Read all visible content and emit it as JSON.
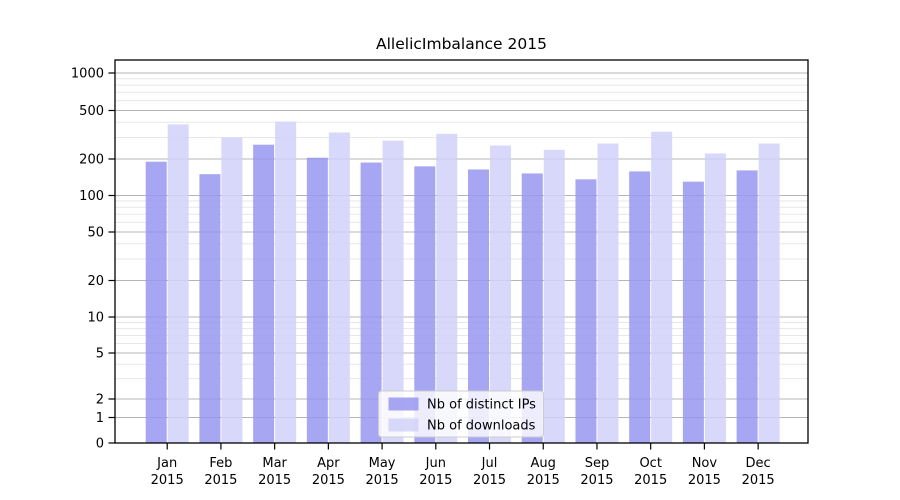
{
  "chart_data": {
    "type": "bar",
    "title": "AllelicImbalance 2015",
    "xlabel": "",
    "ylabel": "",
    "year": "2015",
    "categories": [
      "Jan",
      "Feb",
      "Mar",
      "Apr",
      "May",
      "Jun",
      "Jul",
      "Aug",
      "Sep",
      "Oct",
      "Nov",
      "Dec"
    ],
    "series": [
      {
        "name": "Nb of distinct IPs",
        "color": "#9696f0",
        "values": [
          190,
          150,
          262,
          205,
          187,
          174,
          164,
          152,
          136,
          158,
          130,
          161
        ]
      },
      {
        "name": "Nb of downloads",
        "color": "#d1d1f9",
        "values": [
          385,
          300,
          405,
          330,
          283,
          322,
          258,
          238,
          268,
          335,
          222,
          268
        ]
      }
    ],
    "y_scale": "symlog",
    "y_ticks": [
      0,
      1,
      2,
      5,
      10,
      20,
      50,
      100,
      200,
      500,
      1000
    ],
    "y_tick_labels": [
      "0",
      "1",
      "2",
      "5",
      "10",
      "20",
      "50",
      "100",
      "200",
      "500",
      "1000"
    ],
    "ylim": [
      0,
      1280
    ],
    "grid": true,
    "legend_position": "lower center inside",
    "colors": {
      "grid_major": "#b4b4b4",
      "grid_minor": "#e7e7e7",
      "axis": "#000000",
      "legend_border": "#cccccc",
      "legend_background": "#ffffff",
      "plot_background": "#ffffff"
    }
  }
}
